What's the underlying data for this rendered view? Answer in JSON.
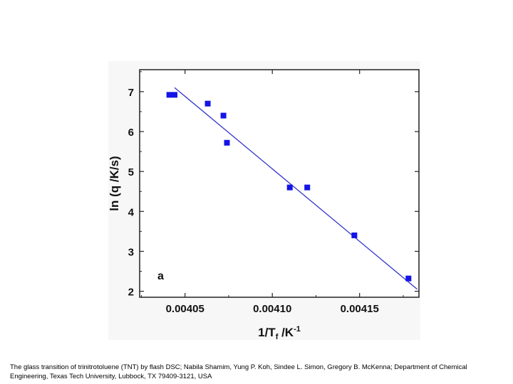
{
  "chart_data": {
    "type": "scatter",
    "panel_label": "a",
    "xlabel": {
      "main": "1/T",
      "sub": "f",
      "unit": " /K",
      "sup": "-1"
    },
    "ylabel": "ln (q /K/s)",
    "xlim": [
      0.004024,
      0.004184
    ],
    "ylim": [
      1.85,
      7.55
    ],
    "x_ticks": [
      0.00405,
      0.0041,
      0.00415
    ],
    "x_tick_labels": [
      "0.00405",
      "0.00410",
      "0.00415"
    ],
    "y_ticks": [
      2,
      3,
      4,
      5,
      6,
      7
    ],
    "y_tick_labels": [
      "2",
      "3",
      "4",
      "5",
      "6",
      "7"
    ],
    "grid": false,
    "series": [
      {
        "marker": "square",
        "color": "#1414e6",
        "points": [
          {
            "x": 0.004041,
            "y": 6.92
          },
          {
            "x": 0.004044,
            "y": 6.92
          },
          {
            "x": 0.004063,
            "y": 6.7
          },
          {
            "x": 0.004072,
            "y": 6.4
          },
          {
            "x": 0.004074,
            "y": 5.72
          },
          {
            "x": 0.00411,
            "y": 4.6
          },
          {
            "x": 0.00412,
            "y": 4.6
          },
          {
            "x": 0.004147,
            "y": 3.4
          },
          {
            "x": 0.004178,
            "y": 2.32
          }
        ]
      },
      {
        "type": "line",
        "color": "#3333cc",
        "x": [
          0.004044,
          0.004183
        ],
        "y": [
          7.1,
          2.05
        ]
      }
    ]
  },
  "caption": "The glass transition of trinitrotoluene (TNT) by flash DSC; Nabila Shamim, Yung P. Koh, Sindee L. Simon, Gregory B. McKenna; Department of Chemical Engineering, Texas Tech University, Lubbock, TX 79409-3121, USA"
}
